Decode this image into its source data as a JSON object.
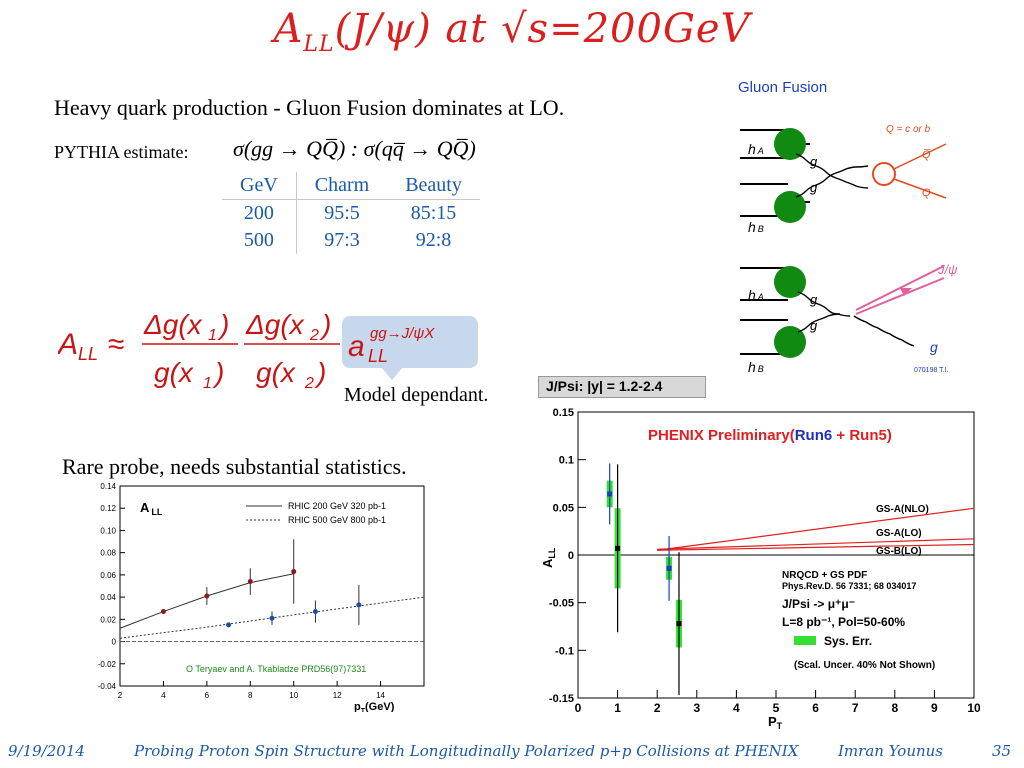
{
  "slide": {
    "title_main": "A",
    "title_sub": "LL",
    "title_rest": "(J/ψ) at √s=200GeV",
    "line1": "Heavy quark production - Gluon Fusion dominates at LO.",
    "pythia_label": "PYTHIA estimate:",
    "pythia_formula": "σ(gg → QQ̅) : σ(qq̅ → QQ̅)",
    "table": {
      "headers": [
        "GeV",
        "Charm",
        "Beauty"
      ],
      "rows": [
        [
          "200",
          "95:5",
          "85:15"
        ],
        [
          "500",
          "97:3",
          "92:8"
        ]
      ]
    },
    "formula": {
      "lhs": "A",
      "lhs_sub": "LL",
      "approx": "≈",
      "num1": "Δg(x",
      "num1_sub": "1",
      "num2": "Δg(x",
      "num2_sub": "2",
      "den1": "g(x",
      "den1_sub": "1",
      "den2": "g(x",
      "den2_sub": "2",
      "close": ")",
      "a": "a",
      "a_sup": "gg→J/ψX",
      "a_sub": "LL"
    },
    "model_dependant": "Model dependant.",
    "rare_probe": "Rare probe, needs substantial statistics."
  },
  "diagram": {
    "title": "Gluon Fusion",
    "top_labels": {
      "hA": "h",
      "hA_sub": "A",
      "hB": "h",
      "hB_sub": "B",
      "g1": "g",
      "g2": "g",
      "Q_note": "Q = c or b",
      "Qbar": "Q̅",
      "Q": "Q"
    },
    "bottom_labels": {
      "hA": "h",
      "hA_sub": "A",
      "hB": "h",
      "hB_sub": "B",
      "g1": "g",
      "g2": "g",
      "g_out": "g",
      "jpsi": "J/ψ",
      "stamp": "070198 T.I."
    }
  },
  "left_chart_data": {
    "type": "scatter",
    "title": "A",
    "title_sub": "LL",
    "legend": [
      "RHIC 200 GeV 320 pb-1",
      "RHIC 500 GeV 800 pb-1"
    ],
    "annotation": "O  Teryaev and A. Tkabladze PRD56(97)7331",
    "xlabel": "p",
    "xlabel_sub": "T",
    "xlabel_unit": "(GeV)",
    "xlim": [
      2,
      16
    ],
    "ylim": [
      -0.04,
      0.14
    ],
    "xticks": [
      2,
      4,
      6,
      8,
      10,
      12,
      14
    ],
    "yticks": [
      -0.04,
      -0.02,
      0,
      0.02,
      0.04,
      0.06,
      0.08,
      0.1,
      0.12,
      0.14
    ],
    "series": [
      {
        "name": "RHIC 200 GeV 320 pb-1",
        "color": "#8b1a1a",
        "x": [
          4,
          6,
          8,
          10
        ],
        "y": [
          0.027,
          0.041,
          0.054,
          0.063
        ],
        "err": [
          0.002,
          0.008,
          0.012,
          0.029
        ]
      },
      {
        "name": "RHIC 500 GeV 800 pb-1",
        "color": "#1a4fa0",
        "x": [
          7,
          9,
          11,
          13
        ],
        "y": [
          0.015,
          0.021,
          0.027,
          0.033
        ],
        "err": [
          0.002,
          0.006,
          0.01,
          0.018
        ]
      }
    ],
    "curve200": [
      [
        2,
        0.012
      ],
      [
        4,
        0.027
      ],
      [
        6,
        0.041
      ],
      [
        8,
        0.053
      ],
      [
        10,
        0.061
      ]
    ],
    "curve500": [
      [
        2,
        0.003
      ],
      [
        6,
        0.013
      ],
      [
        10,
        0.024
      ],
      [
        16,
        0.04
      ]
    ]
  },
  "right_chart_data": {
    "type": "scatter",
    "header": "J/Psi: |y| = 1.2-2.4",
    "title_prefix": "PHENIX Preliminary(",
    "title_run6": "Run6",
    "title_plus": " + ",
    "title_run5": "Run5",
    "title_suffix": ")",
    "xlabel": "P",
    "xlabel_sub": "T",
    "ylabel": "A",
    "ylabel_sub": "LL",
    "xlim": [
      0,
      10
    ],
    "ylim": [
      -0.15,
      0.15
    ],
    "xticks": [
      0,
      1,
      2,
      3,
      4,
      5,
      6,
      7,
      8,
      9,
      10
    ],
    "yticks": [
      -0.15,
      -0.1,
      -0.05,
      0,
      0.05,
      0.1,
      0.15
    ],
    "ytick_labels": [
      "-0.15",
      "-0.1",
      "-0.05",
      "0",
      "0.05",
      "0.1",
      "0.15"
    ],
    "points": [
      {
        "x": 0.8,
        "y": 0.064,
        "err": 0.032,
        "sys": 0.014,
        "color": "#1a3fbf"
      },
      {
        "x": 1.0,
        "y": 0.007,
        "err": 0.088,
        "sys": 0.042,
        "color": "#000000"
      },
      {
        "x": 2.3,
        "y": -0.014,
        "err": 0.034,
        "sys": 0.012,
        "color": "#1a3fbf"
      },
      {
        "x": 2.55,
        "y": -0.072,
        "err": 0.075,
        "sys": 0.025,
        "color": "#000000"
      }
    ],
    "curves": [
      {
        "name": "GS-A(NLO)",
        "x": [
          2,
          10
        ],
        "y": [
          0.005,
          0.049
        ]
      },
      {
        "name": "GS-A(LO)",
        "x": [
          2,
          10
        ],
        "y": [
          0.006,
          0.017
        ]
      },
      {
        "name": "GS-B(LO)",
        "x": [
          2,
          10
        ],
        "y": [
          0.005,
          0.011
        ]
      }
    ],
    "notes": [
      "NRQCD + GS PDF",
      "Phys.Rev.D. 56 7331; 68 034017",
      "J/Psi -> μ⁺μ⁻",
      "L=8 pb⁻¹, Pol=50-60%",
      "Sys. Err.",
      "(Scal. Uncer. 40% Not Shown)"
    ]
  },
  "footer": {
    "date": "9/19/2014",
    "title": "Probing Proton Spin Structure with Longitudinally Polarized p+p Collisions at PHENIX",
    "author": "Imran Younus",
    "page": "35"
  }
}
